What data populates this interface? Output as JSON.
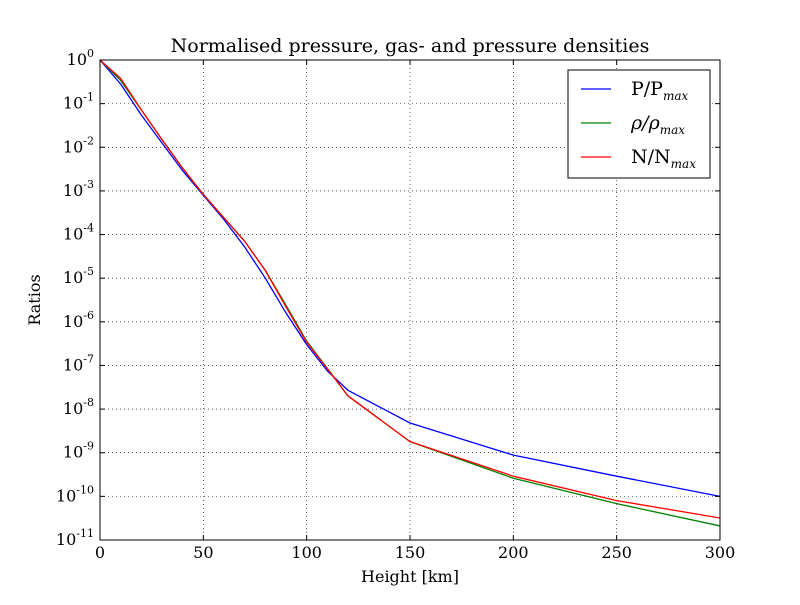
{
  "chart_data": {
    "type": "line",
    "title": "Normalised pressure, gas- and pressure densities",
    "xlabel": "Height [km]",
    "ylabel": "Ratios",
    "xlim": [
      0,
      300
    ],
    "ylim": [
      1e-11,
      1
    ],
    "yscale": "log",
    "grid": true,
    "legend_position": "top-right",
    "x_ticks": [
      0,
      50,
      100,
      150,
      200,
      250,
      300
    ],
    "x_tick_labels": [
      "0",
      "50",
      "100",
      "150",
      "200",
      "250",
      "300"
    ],
    "y_ticks": [
      1,
      0.1,
      0.01,
      0.001,
      0.0001,
      1e-05,
      1e-06,
      1e-07,
      1e-08,
      1e-09,
      1e-10,
      1e-11
    ],
    "y_tick_labels": [
      {
        "base": "10",
        "exp": "0"
      },
      {
        "base": "10",
        "exp": "-1"
      },
      {
        "base": "10",
        "exp": "-2"
      },
      {
        "base": "10",
        "exp": "-3"
      },
      {
        "base": "10",
        "exp": "-4"
      },
      {
        "base": "10",
        "exp": "-5"
      },
      {
        "base": "10",
        "exp": "-6"
      },
      {
        "base": "10",
        "exp": "-7"
      },
      {
        "base": "10",
        "exp": "-8"
      },
      {
        "base": "10",
        "exp": "-9"
      },
      {
        "base": "10",
        "exp": "-10"
      },
      {
        "base": "10",
        "exp": "-11"
      }
    ],
    "series": [
      {
        "name": "P/P_max",
        "legend": {
          "main": "P/P",
          "sub": "max",
          "italic_main": false
        },
        "color": "#0000ff",
        "x": [
          0,
          10,
          20,
          30,
          40,
          50,
          60,
          70,
          80,
          90,
          100,
          110,
          120,
          150,
          200,
          250,
          300
        ],
        "y": [
          1,
          0.28,
          0.055,
          0.0125,
          0.0029,
          0.00079,
          0.00022,
          5.2e-05,
          1e-05,
          1.6e-06,
          3e-07,
          7.5e-08,
          2.7e-08,
          4.8e-09,
          8.8e-10,
          2.9e-10,
          1e-10
        ]
      },
      {
        "name": "ρ/ρ_max",
        "legend": {
          "main": "ρ/ρ",
          "sub": "max",
          "italic_main": true
        },
        "color": "#008000",
        "x": [
          0,
          10,
          20,
          30,
          40,
          50,
          60,
          70,
          80,
          90,
          100,
          110,
          120,
          150,
          200,
          250,
          300
        ],
        "y": [
          1,
          0.34,
          0.072,
          0.015,
          0.0033,
          0.00083,
          0.00024,
          7e-05,
          1.5e-05,
          2.4e-06,
          3.6e-07,
          8.6e-08,
          2e-08,
          1.8e-09,
          2.6e-10,
          6.8e-11,
          2.1e-11
        ]
      },
      {
        "name": "N/N_max",
        "legend": {
          "main": "N/N",
          "sub": "max",
          "italic_main": false
        },
        "color": "#ff0000",
        "x": [
          0,
          10,
          20,
          30,
          40,
          50,
          60,
          70,
          80,
          90,
          100,
          110,
          120,
          150,
          200,
          250,
          300
        ],
        "y": [
          1,
          0.38,
          0.072,
          0.015,
          0.0033,
          0.00083,
          0.00024,
          7e-05,
          1.5e-05,
          2.2e-06,
          3.4e-07,
          8.4e-08,
          2e-08,
          1.8e-09,
          2.9e-10,
          8e-11,
          3.2e-11
        ]
      }
    ]
  }
}
